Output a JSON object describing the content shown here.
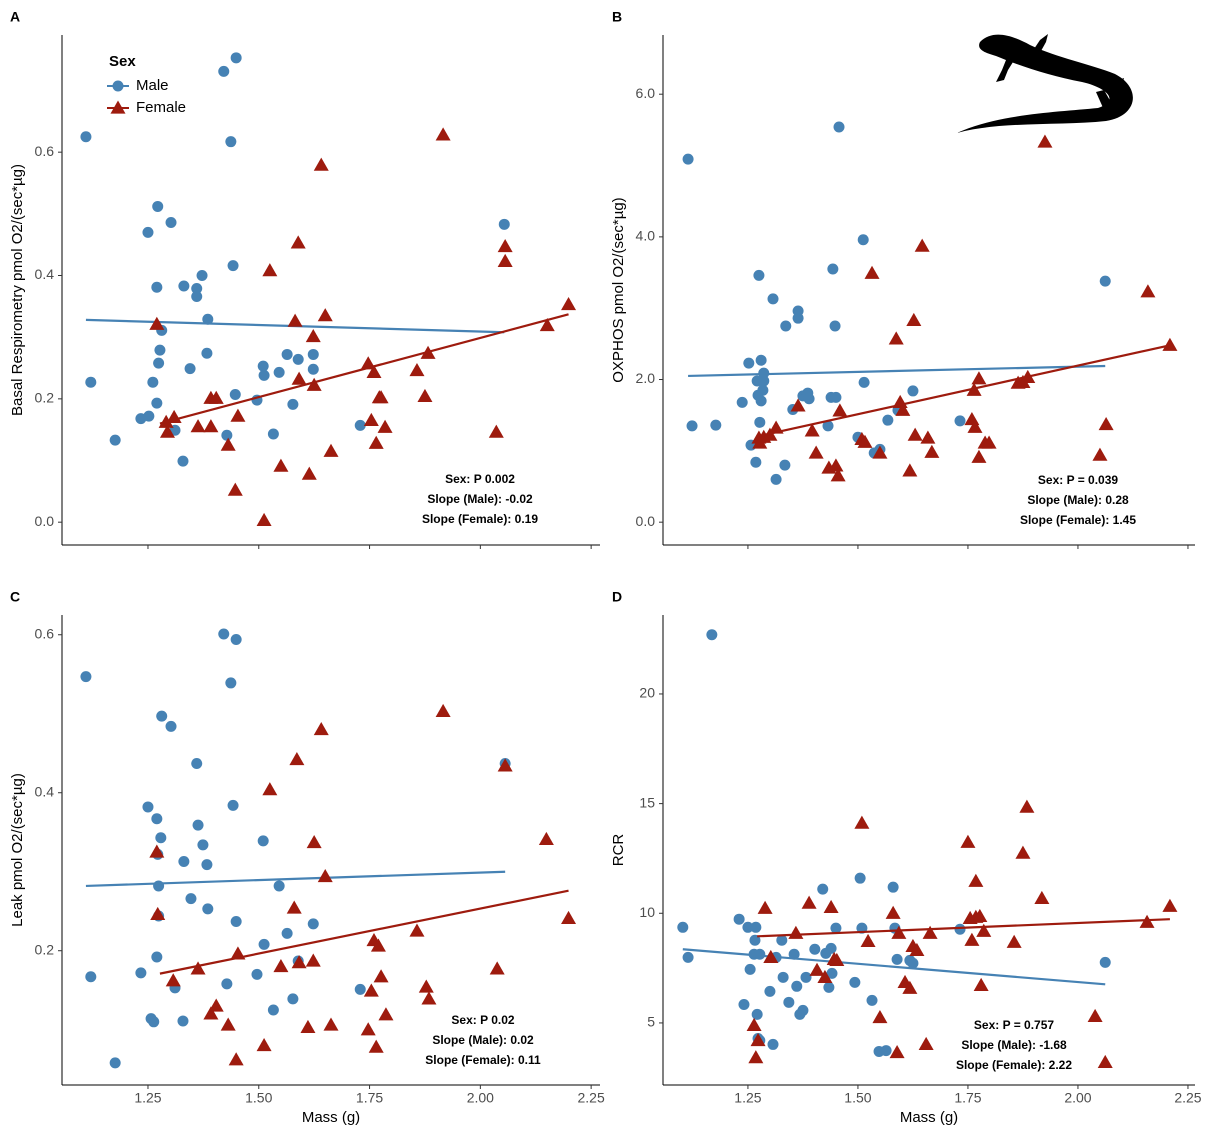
{
  "chart_data": [
    {
      "type": "scatter",
      "panel_label": "A",
      "ylabel": "Basal Respirometry pmol O2/(sec*µg)",
      "xlim": [
        1.056,
        2.27
      ],
      "ylim": [
        -0.037,
        0.79
      ],
      "xticks": [
        1.25,
        1.5,
        1.75,
        2,
        2.25
      ],
      "xtick_labels": false,
      "yticks": [
        {
          "value": 0,
          "label": "0.0"
        },
        0.2,
        0.4,
        0.6
      ],
      "legend": {
        "title": "Sex",
        "position": "top-left"
      },
      "annotations": [
        "Sex: P 0.002",
        "Slope (Male): -0.02",
        "Slope (Female): 0.19"
      ],
      "series": [
        {
          "name": "Male",
          "color": "#4682b4",
          "marker": "circle",
          "x": [
            1.11,
            1.121,
            1.176,
            1.234,
            1.25,
            1.252,
            1.261,
            1.27,
            1.27,
            1.272,
            1.274,
            1.277,
            1.281,
            1.302,
            1.311,
            1.329,
            1.331,
            1.345,
            1.36,
            1.36,
            1.372,
            1.383,
            1.385,
            1.428,
            1.421,
            1.437,
            1.442,
            1.449,
            1.447,
            1.496,
            1.51,
            1.512,
            1.533,
            1.546,
            1.564,
            1.577,
            1.589,
            1.623,
            1.623,
            1.729,
            2.054
          ],
          "values": [
            0.625,
            0.227,
            0.133,
            0.168,
            0.47,
            0.172,
            0.227,
            0.193,
            0.381,
            0.512,
            0.258,
            0.279,
            0.311,
            0.486,
            0.149,
            0.099,
            0.383,
            0.249,
            0.366,
            0.379,
            0.4,
            0.274,
            0.329,
            0.141,
            0.731,
            0.617,
            0.416,
            0.753,
            0.207,
            0.198,
            0.253,
            0.238,
            0.143,
            0.243,
            0.272,
            0.191,
            0.264,
            0.272,
            0.248,
            0.157,
            0.483
          ],
          "fit_x": [
            1.11,
            2.054
          ],
          "fit_y": [
            0.328,
            0.308
          ]
        },
        {
          "name": "Female",
          "color": "#9e1b0e",
          "marker": "triangle",
          "x": [
            1.27,
            1.291,
            1.294,
            1.309,
            1.363,
            1.392,
            1.392,
            1.404,
            1.431,
            1.447,
            1.453,
            1.512,
            1.525,
            1.55,
            1.582,
            1.589,
            1.591,
            1.614,
            1.623,
            1.625,
            1.641,
            1.65,
            1.663,
            1.747,
            1.754,
            1.76,
            1.765,
            1.772,
            1.776,
            1.785,
            1.857,
            1.875,
            1.882,
            1.916,
            2.036,
            2.056,
            2.056,
            2.151,
            2.199
          ],
          "values": [
            0.321,
            0.162,
            0.146,
            0.17,
            0.155,
            0.155,
            0.201,
            0.201,
            0.125,
            0.052,
            0.172,
            0.003,
            0.408,
            0.091,
            0.326,
            0.453,
            0.232,
            0.078,
            0.301,
            0.222,
            0.579,
            0.335,
            0.115,
            0.257,
            0.165,
            0.243,
            0.128,
            0.202,
            0.202,
            0.154,
            0.246,
            0.204,
            0.274,
            0.628,
            0.146,
            0.423,
            0.447,
            0.319,
            0.353
          ],
          "fit_x": [
            1.277,
            2.199
          ],
          "fit_y": [
            0.16,
            0.337
          ]
        }
      ]
    },
    {
      "type": "scatter",
      "panel_label": "B",
      "ylabel": "OXPHOS pmol O2/(sec*µg)",
      "xlim": [
        1.057,
        2.266
      ],
      "ylim": [
        -0.32,
        6.83
      ],
      "xticks": [
        1.25,
        1.5,
        1.75,
        2,
        2.25
      ],
      "xtick_labels": false,
      "yticks": [
        {
          "value": 0,
          "label": "0.0"
        },
        {
          "value": 2,
          "label": "2.0"
        },
        {
          "value": 4,
          "label": "4.0"
        },
        {
          "value": 6,
          "label": "6.0"
        }
      ],
      "annotations": [
        "Sex: P = 0.039",
        "Slope (Male): 0.28",
        "Slope (Female): 1.45"
      ],
      "series": [
        {
          "color": "#4682b4",
          "marker": "circle",
          "x": [
            1.114,
            1.123,
            1.177,
            1.237,
            1.252,
            1.257,
            1.268,
            1.271,
            1.273,
            1.275,
            1.277,
            1.28,
            1.28,
            1.284,
            1.286,
            1.286,
            1.307,
            1.314,
            1.334,
            1.336,
            1.352,
            1.364,
            1.364,
            1.375,
            1.384,
            1.386,
            1.389,
            1.432,
            1.439,
            1.443,
            1.45,
            1.457,
            1.448,
            1.5,
            1.512,
            1.514,
            1.537,
            1.55,
            1.568,
            1.625,
            1.591,
            1.732,
            2.062
          ],
          "values": [
            5.09,
            1.35,
            1.36,
            1.68,
            2.23,
            1.08,
            0.84,
            1.98,
            1.78,
            3.46,
            1.4,
            1.7,
            2.27,
            1.85,
            1.98,
            2.09,
            3.13,
            0.6,
            0.8,
            2.75,
            1.58,
            2.86,
            2.96,
            1.77,
            1.77,
            1.81,
            1.73,
            1.35,
            1.75,
            3.55,
            1.75,
            5.54,
            2.75,
            1.19,
            3.96,
            1.96,
            0.97,
            1.02,
            1.43,
            1.84,
            1.57,
            1.42,
            3.38
          ],
          "fit_x": [
            1.114,
            2.062
          ],
          "fit_y": [
            2.05,
            2.19
          ]
        },
        {
          "color": "#9e1b0e",
          "marker": "triangle",
          "x": [
            1.275,
            1.277,
            1.286,
            1.3,
            1.314,
            1.364,
            1.396,
            1.405,
            1.434,
            1.45,
            1.455,
            1.459,
            1.509,
            1.516,
            1.532,
            1.55,
            1.587,
            1.596,
            1.602,
            1.618,
            1.627,
            1.63,
            1.646,
            1.659,
            1.668,
            1.759,
            1.764,
            1.766,
            1.775,
            1.775,
            1.789,
            1.798,
            1.864,
            1.875,
            1.886,
            1.925,
            2.05,
            2.064,
            2.159,
            2.209
          ],
          "values": [
            1.18,
            1.11,
            1.19,
            1.22,
            1.32,
            1.63,
            1.28,
            0.97,
            0.76,
            0.79,
            0.65,
            1.56,
            1.16,
            1.12,
            3.49,
            0.97,
            2.57,
            1.68,
            1.57,
            0.72,
            2.83,
            1.22,
            3.87,
            1.18,
            0.98,
            1.44,
            1.85,
            1.33,
            2.01,
            0.91,
            1.11,
            1.11,
            1.95,
            1.96,
            2.03,
            5.33,
            0.94,
            1.37,
            3.23,
            2.48
          ],
          "fit_x": [
            1.277,
            2.209
          ],
          "fit_y": [
            1.21,
            2.48
          ]
        }
      ]
    },
    {
      "type": "scatter",
      "panel_label": "C",
      "ylabel": "Leak pmol O2/(sec*µg)",
      "xlabel": "Mass (g)",
      "xlim": [
        1.056,
        2.27
      ],
      "ylim": [
        0.03,
        0.625
      ],
      "xticks": [
        1.25,
        {
          "value": 1.5,
          "label": "1.50"
        },
        1.75,
        {
          "value": 2,
          "label": "2.00"
        },
        2.25
      ],
      "xtick_labels": true,
      "yticks": [
        0.2,
        0.4,
        0.6
      ],
      "annotations": [
        "Sex: P 0.02",
        "Slope (Male): 0.02",
        "Slope (Female): 0.11"
      ],
      "series": [
        {
          "color": "#4682b4",
          "marker": "circle",
          "x": [
            1.11,
            1.121,
            1.176,
            1.234,
            1.25,
            1.257,
            1.263,
            1.27,
            1.27,
            1.272,
            1.274,
            1.274,
            1.279,
            1.281,
            1.302,
            1.311,
            1.329,
            1.331,
            1.347,
            1.36,
            1.363,
            1.374,
            1.383,
            1.385,
            1.421,
            1.428,
            1.437,
            1.442,
            1.449,
            1.449,
            1.496,
            1.512,
            1.51,
            1.533,
            1.546,
            1.564,
            1.577,
            1.589,
            1.623,
            1.729,
            2.056
          ],
          "values": [
            0.547,
            0.167,
            0.058,
            0.172,
            0.382,
            0.114,
            0.11,
            0.367,
            0.192,
            0.322,
            0.282,
            0.244,
            0.343,
            0.497,
            0.484,
            0.153,
            0.111,
            0.313,
            0.266,
            0.437,
            0.359,
            0.334,
            0.309,
            0.253,
            0.601,
            0.158,
            0.539,
            0.384,
            0.594,
            0.237,
            0.17,
            0.208,
            0.339,
            0.125,
            0.282,
            0.222,
            0.139,
            0.187,
            0.234,
            0.151,
            0.437
          ],
          "fit_x": [
            1.11,
            2.056
          ],
          "fit_y": [
            0.282,
            0.3
          ]
        },
        {
          "color": "#9e1b0e",
          "marker": "triangle",
          "x": [
            1.27,
            1.272,
            1.307,
            1.363,
            1.392,
            1.404,
            1.431,
            1.449,
            1.453,
            1.512,
            1.525,
            1.55,
            1.58,
            1.586,
            1.591,
            1.611,
            1.625,
            1.623,
            1.641,
            1.65,
            1.663,
            1.747,
            1.754,
            1.76,
            1.765,
            1.77,
            1.776,
            1.787,
            1.857,
            1.878,
            1.884,
            1.916,
            2.038,
            2.056,
            2.149,
            2.199
          ],
          "values": [
            0.325,
            0.246,
            0.162,
            0.177,
            0.12,
            0.13,
            0.106,
            0.062,
            0.196,
            0.08,
            0.404,
            0.18,
            0.254,
            0.442,
            0.185,
            0.103,
            0.337,
            0.187,
            0.48,
            0.294,
            0.106,
            0.1,
            0.149,
            0.213,
            0.078,
            0.206,
            0.167,
            0.119,
            0.225,
            0.154,
            0.139,
            0.503,
            0.177,
            0.434,
            0.341,
            0.241
          ],
          "fit_x": [
            1.277,
            2.199
          ],
          "fit_y": [
            0.171,
            0.276
          ]
        }
      ]
    },
    {
      "type": "scatter",
      "panel_label": "D",
      "ylabel": "RCR",
      "xlabel": "Mass (g)",
      "xlim": [
        1.057,
        2.266
      ],
      "ylim": [
        2.17,
        23.6
      ],
      "xticks": [
        1.25,
        {
          "value": 1.5,
          "label": "1.50"
        },
        1.75,
        {
          "value": 2,
          "label": "2.00"
        },
        2.25
      ],
      "xtick_labels": true,
      "yticks": [
        5,
        10,
        15,
        20
      ],
      "annotations": [
        "Sex: P = 0.757",
        "Slope (Male): -1.68",
        "Slope (Female): 2.22"
      ],
      "series": [
        {
          "color": "#4682b4",
          "marker": "circle",
          "x": [
            1.102,
            1.114,
            1.168,
            1.23,
            1.241,
            1.25,
            1.255,
            1.264,
            1.268,
            1.266,
            1.271,
            1.273,
            1.277,
            1.277,
            1.3,
            1.307,
            1.314,
            1.327,
            1.33,
            1.343,
            1.355,
            1.361,
            1.368,
            1.375,
            1.382,
            1.402,
            1.42,
            1.427,
            1.434,
            1.441,
            1.439,
            1.45,
            1.493,
            1.505,
            1.509,
            1.532,
            1.548,
            1.564,
            1.58,
            1.584,
            1.589,
            1.618,
            1.625,
            1.732,
            2.062
          ],
          "values": [
            9.36,
            7.99,
            22.7,
            9.73,
            5.84,
            9.36,
            7.44,
            8.13,
            9.36,
            8.77,
            5.39,
            4.29,
            4.2,
            8.13,
            6.44,
            4.02,
            7.99,
            8.77,
            7.08,
            5.94,
            8.13,
            6.67,
            5.39,
            5.57,
            7.08,
            8.36,
            11.1,
            8.17,
            6.62,
            7.26,
            8.4,
            9.32,
            6.85,
            11.6,
            9.32,
            6.03,
            3.7,
            3.74,
            11.19,
            9.32,
            7.9,
            7.85,
            7.72,
            9.27,
            7.76
          ],
          "fit_x": [
            1.102,
            2.062
          ],
          "fit_y": [
            8.36,
            6.76
          ]
        },
        {
          "color": "#9e1b0e",
          "marker": "triangle",
          "x": [
            1.264,
            1.268,
            1.273,
            1.289,
            1.302,
            1.359,
            1.389,
            1.407,
            1.425,
            1.439,
            1.446,
            1.452,
            1.509,
            1.523,
            1.55,
            1.58,
            1.589,
            1.593,
            1.607,
            1.618,
            1.625,
            1.634,
            1.655,
            1.664,
            1.75,
            1.755,
            1.759,
            1.768,
            1.768,
            1.777,
            1.78,
            1.786,
            1.855,
            1.875,
            1.884,
            1.918,
            2.039,
            2.062,
            2.157,
            2.209
          ],
          "values": [
            4.89,
            3.42,
            4.2,
            10.23,
            7.99,
            9.09,
            10.46,
            7.4,
            7.08,
            10.27,
            7.9,
            7.85,
            14.11,
            8.72,
            5.25,
            10.0,
            3.65,
            9.09,
            6.85,
            6.58,
            8.49,
            8.31,
            4.02,
            9.09,
            13.24,
            9.77,
            8.77,
            11.46,
            9.82,
            9.86,
            6.71,
            9.18,
            8.68,
            12.74,
            14.84,
            10.68,
            5.3,
            3.2,
            9.59,
            10.32
          ],
          "fit_x": [
            1.271,
            2.209
          ],
          "fit_y": [
            8.95,
            9.73
          ]
        }
      ]
    }
  ]
}
